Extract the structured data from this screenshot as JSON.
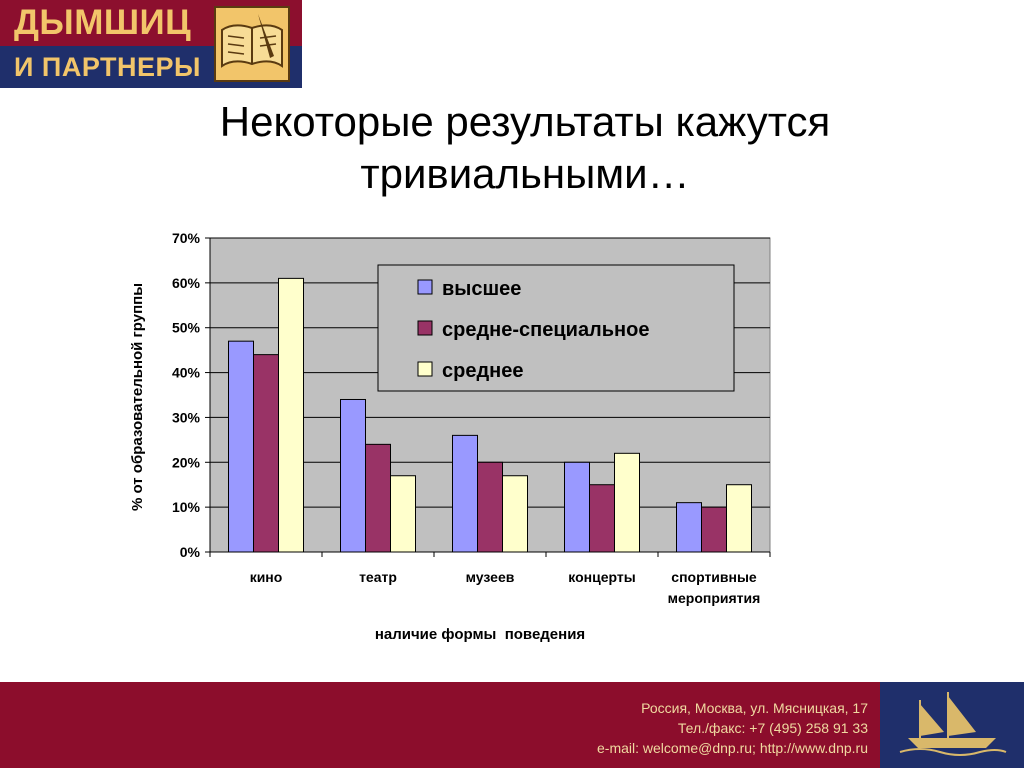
{
  "brand": {
    "line1": "ДЫМШИЦ",
    "line2": "И ПАРТНЕРЫ"
  },
  "slide": {
    "title_line1": "Некоторые результаты кажутся",
    "title_line2": "тривиальными…"
  },
  "chart_data": {
    "type": "bar",
    "categories": [
      "кино",
      "театр",
      "музеев",
      "концерты",
      [
        "спортивные",
        "мероприятия"
      ]
    ],
    "series": [
      {
        "name": "высшее",
        "color": "#9999ff",
        "values": [
          47,
          34,
          26,
          20,
          11
        ]
      },
      {
        "name": "средне-специальное",
        "color": "#993366",
        "values": [
          44,
          24,
          20,
          15,
          10
        ]
      },
      {
        "name": "среднее",
        "color": "#ffffcc",
        "values": [
          61,
          17,
          17,
          22,
          15
        ]
      }
    ],
    "ylim": [
      0,
      70
    ],
    "yticks": [
      0,
      10,
      20,
      30,
      40,
      50,
      60,
      70
    ],
    "ytick_suffix": "%",
    "xlabel": "наличие формы  поведения",
    "ylabel": "% от образовательной группы",
    "grid": true,
    "legend_position": "top-right",
    "plot_bg": "#c0c0c0"
  },
  "footer": {
    "address": "Россия, Москва, ул. Мясницкая, 17",
    "phone": "Тел./факс: +7 (495) 258 91 33",
    "contacts": "e-mail: welcome@dnp.ru; http://www.dnp.ru"
  }
}
